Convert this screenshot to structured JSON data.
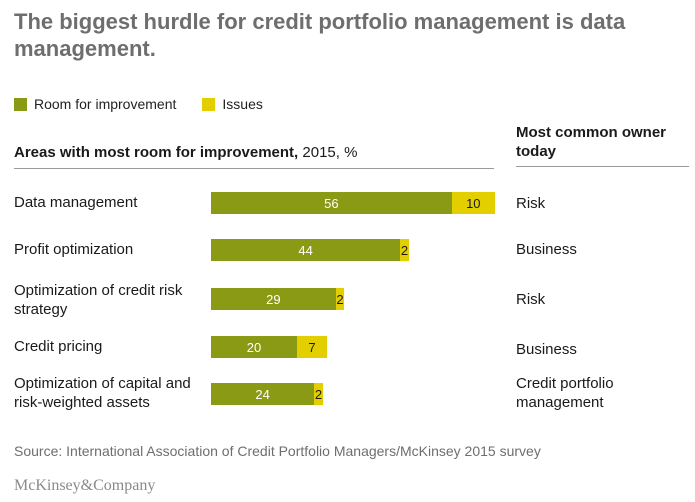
{
  "title": "The biggest hurdle for credit portfolio management is data management.",
  "legend": [
    {
      "label": "Room for improvement",
      "color": "#8b9a14"
    },
    {
      "label": "Issues",
      "color": "#e3cf00"
    }
  ],
  "section_header": {
    "bold": "Areas with most room for improvement,",
    "rest": " 2015, %"
  },
  "owner_header": "Most common owner today",
  "source": "Source: International Association of Credit Portfolio Managers/McKinsey 2015 survey",
  "logo": "McKinsey&Company",
  "chart_data": {
    "type": "bar",
    "orientation": "horizontal",
    "stacked": true,
    "categories": [
      "Data management",
      "Profit optimization",
      "Optimization of credit risk strategy",
      "Credit pricing",
      "Optimization of capital and risk-weighted assets"
    ],
    "series": [
      {
        "name": "Room for improvement",
        "values": [
          56,
          44,
          29,
          20,
          24
        ],
        "color": "#8b9a14"
      },
      {
        "name": "Issues",
        "values": [
          10,
          2,
          2,
          7,
          2
        ],
        "color": "#e3cf00"
      }
    ],
    "owners": [
      "Risk",
      "Business",
      "Risk",
      "Business",
      "Credit portfolio management"
    ],
    "title": "Areas with most room for improvement, 2015, %",
    "xlim": [
      0,
      66
    ]
  }
}
